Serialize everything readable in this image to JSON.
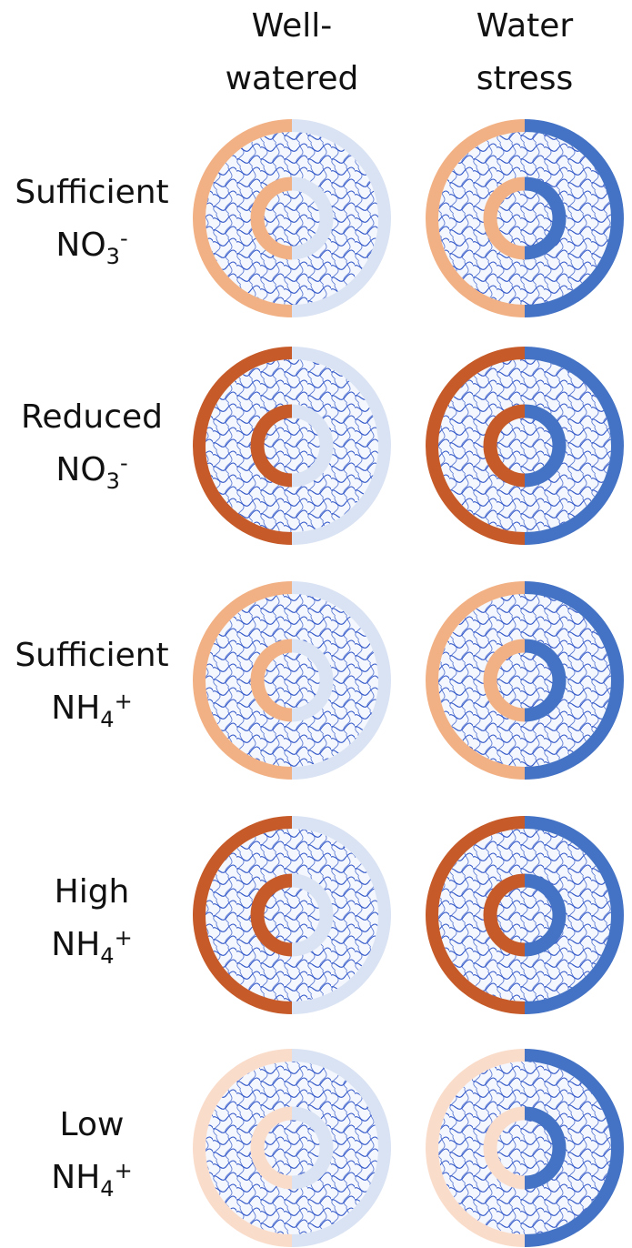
{
  "columns": [
    {
      "line1": "Well-",
      "line2": "watered",
      "water_state": "well-watered"
    },
    {
      "line1": "Water",
      "line2": "stress",
      "water_state": "water-stress"
    }
  ],
  "rows": [
    {
      "line1": "Sufficient",
      "ion_base": "NO",
      "ion_sub": "3",
      "ion_sup": "-",
      "nitrogen_level": "sufficient"
    },
    {
      "line1": "Reduced",
      "ion_base": "NO",
      "ion_sub": "3",
      "ion_sup": "-",
      "nitrogen_level": "strong"
    },
    {
      "line1": "Sufficient",
      "ion_base": "NH",
      "ion_sub": "4",
      "ion_sup": "+",
      "nitrogen_level": "sufficient"
    },
    {
      "line1": "High",
      "ion_base": "NH",
      "ion_sub": "4",
      "ion_sup": "+",
      "nitrogen_level": "strong"
    },
    {
      "line1": "Low",
      "ion_base": "NH",
      "ion_sub": "4",
      "ion_sup": "+",
      "nitrogen_level": "weak"
    }
  ],
  "colors": {
    "nitrogen": {
      "sufficient": "#F2B184",
      "strong": "#C65A28",
      "weak": "#FADCCB"
    },
    "water": {
      "well-watered": "#DAE3F3",
      "water-stress": "#4472C4"
    },
    "texture_stroke": "#2F55C8",
    "texture_background": "#F4F7FD",
    "text": "#111111"
  }
}
